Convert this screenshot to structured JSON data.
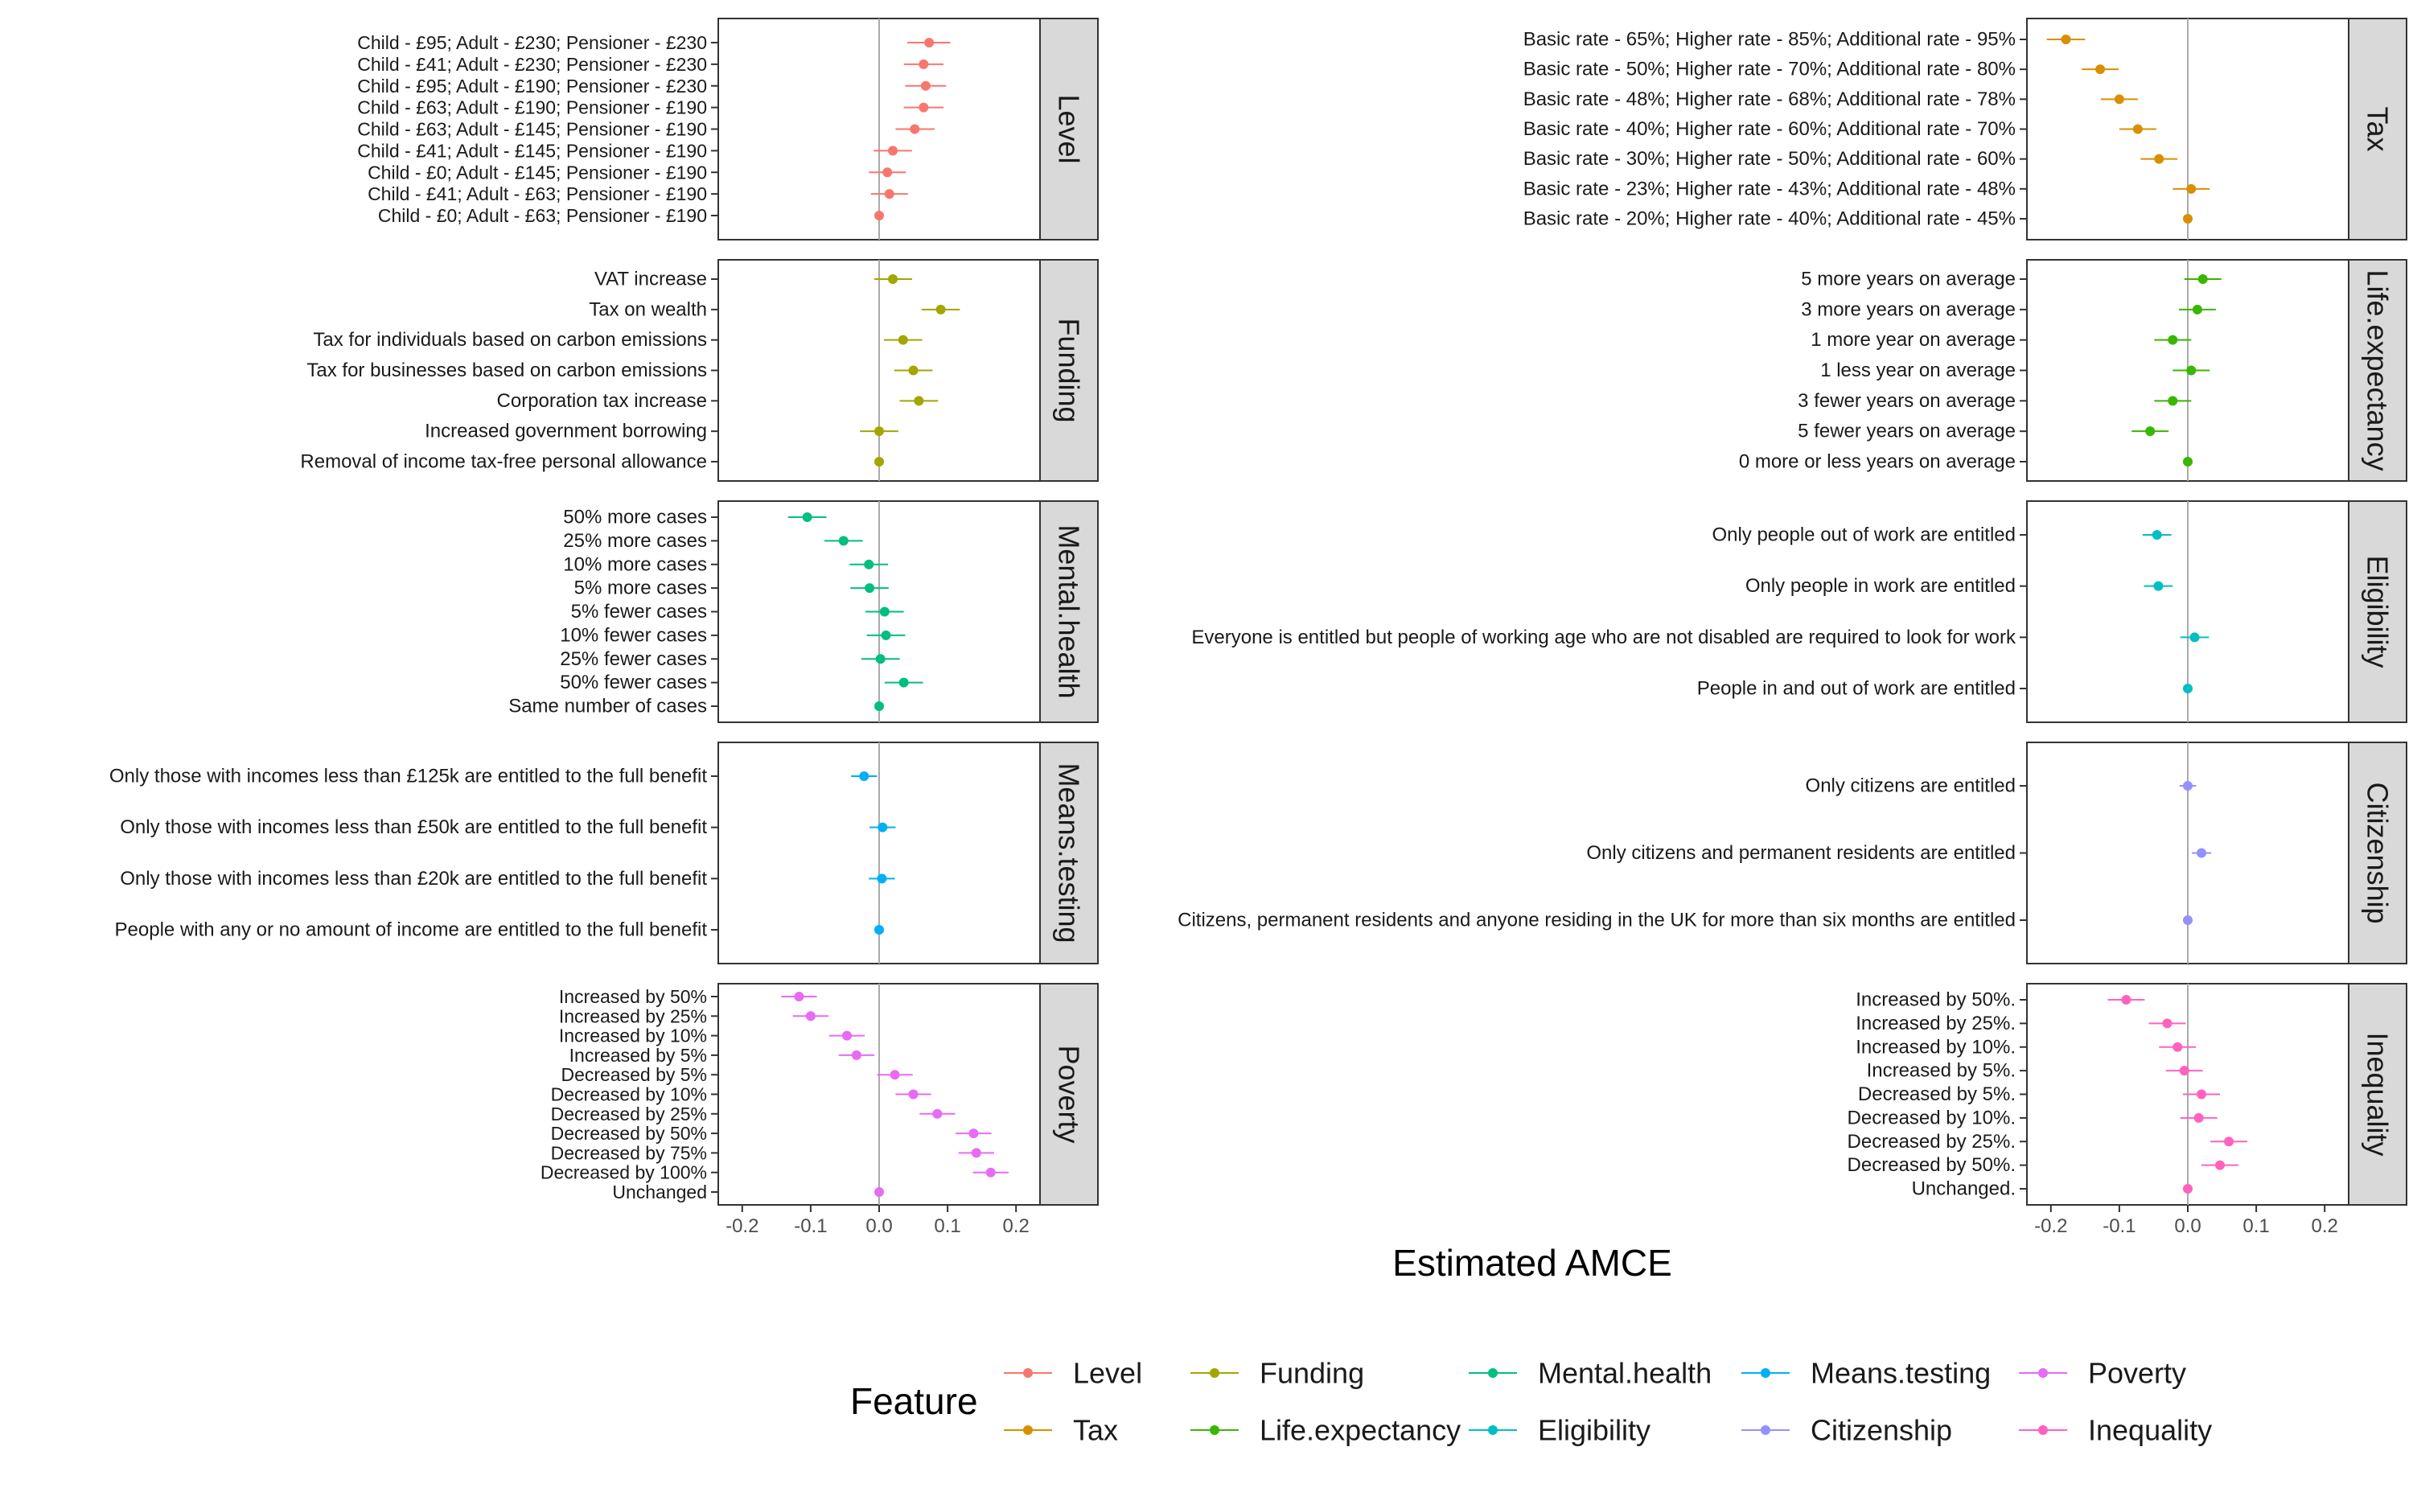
{
  "chart_data": {
    "type": "scatter",
    "xlabel": "Estimated AMCE",
    "xlim": [
      -0.235,
      0.235
    ],
    "xticks": [
      -0.2,
      -0.1,
      0.0,
      0.1,
      0.2
    ],
    "xtick_labels": [
      "-0.2",
      "-0.1",
      "0.0",
      "0.1",
      "0.2"
    ],
    "reference_line": 0,
    "legend": {
      "title": "Feature",
      "placement": "bottom"
    },
    "series": [
      {
        "name": "Level",
        "color": "#F8766D",
        "points": [
          {
            "label": "Child - £95; Adult - £230; Pensioner - £230",
            "estimate": 0.073,
            "lower": 0.041,
            "upper": 0.104
          },
          {
            "label": "Child - £41; Adult - £230; Pensioner - £230",
            "estimate": 0.065,
            "lower": 0.036,
            "upper": 0.094
          },
          {
            "label": "Child - £95; Adult - £190; Pensioner - £230",
            "estimate": 0.068,
            "lower": 0.038,
            "upper": 0.098
          },
          {
            "label": "Child - £63; Adult - £190; Pensioner - £190",
            "estimate": 0.065,
            "lower": 0.036,
            "upper": 0.094
          },
          {
            "label": "Child - £63; Adult - £145; Pensioner - £190",
            "estimate": 0.052,
            "lower": 0.024,
            "upper": 0.081
          },
          {
            "label": "Child - £41; Adult - £145; Pensioner - £190",
            "estimate": 0.02,
            "lower": -0.008,
            "upper": 0.048
          },
          {
            "label": "Child - £0; Adult - £145; Pensioner - £190",
            "estimate": 0.012,
            "lower": -0.015,
            "upper": 0.039
          },
          {
            "label": "Child - £41; Adult - £63; Pensioner - £190",
            "estimate": 0.015,
            "lower": -0.012,
            "upper": 0.042
          },
          {
            "label": "Child - £0; Adult - £63; Pensioner - £190",
            "estimate": 0.0
          }
        ]
      },
      {
        "name": "Tax",
        "color": "#D89000",
        "points": [
          {
            "label": "Basic rate - 65%; Higher rate - 85%; Additional rate - 95%",
            "estimate": -0.178,
            "lower": -0.206,
            "upper": -0.15
          },
          {
            "label": "Basic rate - 50%; Higher rate - 70%; Additional rate - 80%",
            "estimate": -0.128,
            "lower": -0.155,
            "upper": -0.101
          },
          {
            "label": "Basic rate - 48%; Higher rate - 68%; Additional rate - 78%",
            "estimate": -0.1,
            "lower": -0.127,
            "upper": -0.073
          },
          {
            "label": "Basic rate - 40%; Higher rate - 60%; Additional rate - 70%",
            "estimate": -0.073,
            "lower": -0.1,
            "upper": -0.046
          },
          {
            "label": "Basic rate - 30%; Higher rate - 50%; Additional rate - 60%",
            "estimate": -0.042,
            "lower": -0.069,
            "upper": -0.015
          },
          {
            "label": "Basic rate - 23%; Higher rate - 43%; Additional rate - 48%",
            "estimate": 0.005,
            "lower": -0.022,
            "upper": 0.032
          },
          {
            "label": "Basic rate - 20%; Higher rate - 40%; Additional rate - 45%",
            "estimate": 0.0
          }
        ]
      },
      {
        "name": "Funding",
        "color": "#A3A500",
        "points": [
          {
            "label": "VAT increase",
            "estimate": 0.02,
            "lower": -0.007,
            "upper": 0.048
          },
          {
            "label": "Tax on wealth",
            "estimate": 0.09,
            "lower": 0.062,
            "upper": 0.118
          },
          {
            "label": "Tax for individuals based on carbon emissions",
            "estimate": 0.035,
            "lower": 0.007,
            "upper": 0.063
          },
          {
            "label": "Tax for businesses based on carbon emissions",
            "estimate": 0.05,
            "lower": 0.022,
            "upper": 0.078
          },
          {
            "label": "Corporation tax increase",
            "estimate": 0.058,
            "lower": 0.03,
            "upper": 0.086
          },
          {
            "label": "Increased government borrowing",
            "estimate": 0.0,
            "lower": -0.028,
            "upper": 0.028
          },
          {
            "label": "Removal of income tax-free personal allowance",
            "estimate": 0.0
          }
        ]
      },
      {
        "name": "Life.expectancy",
        "color": "#39B600",
        "points": [
          {
            "label": "5 more years on average",
            "estimate": 0.022,
            "lower": -0.005,
            "upper": 0.049
          },
          {
            "label": "3 more years on average",
            "estimate": 0.014,
            "lower": -0.013,
            "upper": 0.041
          },
          {
            "label": "1 more year on average",
            "estimate": -0.022,
            "lower": -0.049,
            "upper": 0.005
          },
          {
            "label": "1 less year on average",
            "estimate": 0.005,
            "lower": -0.022,
            "upper": 0.032
          },
          {
            "label": "3 fewer years on average",
            "estimate": -0.022,
            "lower": -0.049,
            "upper": 0.005
          },
          {
            "label": "5 fewer years on average",
            "estimate": -0.055,
            "lower": -0.082,
            "upper": -0.028
          },
          {
            "label": "0 more or less years on average",
            "estimate": 0.0
          }
        ]
      },
      {
        "name": "Mental.health",
        "color": "#00BF7D",
        "points": [
          {
            "label": "50% more cases",
            "estimate": -0.105,
            "lower": -0.133,
            "upper": -0.077
          },
          {
            "label": "25% more cases",
            "estimate": -0.052,
            "lower": -0.08,
            "upper": -0.024
          },
          {
            "label": "10% more cases",
            "estimate": -0.015,
            "lower": -0.043,
            "upper": 0.013
          },
          {
            "label": "5% more cases",
            "estimate": -0.014,
            "lower": -0.042,
            "upper": 0.014
          },
          {
            "label": "5% fewer cases",
            "estimate": 0.008,
            "lower": -0.02,
            "upper": 0.036
          },
          {
            "label": "10% fewer cases",
            "estimate": 0.01,
            "lower": -0.018,
            "upper": 0.038
          },
          {
            "label": "25% fewer cases",
            "estimate": 0.002,
            "lower": -0.026,
            "upper": 0.03
          },
          {
            "label": "50% fewer cases",
            "estimate": 0.036,
            "lower": 0.008,
            "upper": 0.064
          },
          {
            "label": "Same number of cases",
            "estimate": 0.0
          }
        ]
      },
      {
        "name": "Eligibility",
        "color": "#00BFC4",
        "points": [
          {
            "label": "Only people out of work are entitled",
            "estimate": -0.045,
            "lower": -0.066,
            "upper": -0.024
          },
          {
            "label": "Only people in work are entitled",
            "estimate": -0.043,
            "lower": -0.064,
            "upper": -0.022
          },
          {
            "label": "Everyone is entitled but people of working age who are not disabled are required to look for work",
            "estimate": 0.01,
            "lower": -0.011,
            "upper": 0.031
          },
          {
            "label": "People in and out of work are entitled",
            "estimate": 0.0
          }
        ]
      },
      {
        "name": "Means.testing",
        "color": "#00B0F6",
        "points": [
          {
            "label": "Only those with incomes less than £125k are entitled to the full benefit",
            "estimate": -0.022,
            "lower": -0.041,
            "upper": -0.003
          },
          {
            "label": "Only those with incomes less than £50k are entitled to the full benefit",
            "estimate": 0.005,
            "lower": -0.014,
            "upper": 0.024
          },
          {
            "label": "Only those with incomes less than £20k are entitled to the full benefit",
            "estimate": 0.004,
            "lower": -0.015,
            "upper": 0.023
          },
          {
            "label": "People with any or no amount of income are entitled to the full benefit",
            "estimate": 0.0
          }
        ]
      },
      {
        "name": "Citizenship",
        "color": "#9590FF",
        "points": [
          {
            "label": "Only citizens are entitled",
            "estimate": 0.0,
            "lower": -0.012,
            "upper": 0.012
          },
          {
            "label": "Only citizens and permanent residents are entitled",
            "estimate": 0.02,
            "lower": 0.006,
            "upper": 0.034
          },
          {
            "label": "Citizens, permanent residents and anyone residing in the UK for more than six months are entitled",
            "estimate": 0.0
          }
        ]
      },
      {
        "name": "Poverty",
        "color": "#E76BF3",
        "points": [
          {
            "label": "Increased by 50%",
            "estimate": -0.117,
            "lower": -0.143,
            "upper": -0.091
          },
          {
            "label": "Increased by 25%",
            "estimate": -0.1,
            "lower": -0.126,
            "upper": -0.074
          },
          {
            "label": "Increased by 10%",
            "estimate": -0.047,
            "lower": -0.073,
            "upper": -0.021
          },
          {
            "label": "Increased by 5%",
            "estimate": -0.033,
            "lower": -0.059,
            "upper": -0.007
          },
          {
            "label": "Decreased by 5%",
            "estimate": 0.023,
            "lower": -0.003,
            "upper": 0.049
          },
          {
            "label": "Decreased by 10%",
            "estimate": 0.05,
            "lower": 0.024,
            "upper": 0.076
          },
          {
            "label": "Decreased by 25%",
            "estimate": 0.085,
            "lower": 0.059,
            "upper": 0.111
          },
          {
            "label": "Decreased by 50%",
            "estimate": 0.138,
            "lower": 0.112,
            "upper": 0.164
          },
          {
            "label": "Decreased by 75%",
            "estimate": 0.142,
            "lower": 0.116,
            "upper": 0.168
          },
          {
            "label": "Decreased by 100%",
            "estimate": 0.163,
            "lower": 0.137,
            "upper": 0.189
          },
          {
            "label": "Unchanged",
            "estimate": 0.0
          }
        ]
      },
      {
        "name": "Inequality",
        "color": "#FF62BC",
        "points": [
          {
            "label": "Increased by 50%.",
            "estimate": -0.09,
            "lower": -0.117,
            "upper": -0.063
          },
          {
            "label": "Increased by 25%.",
            "estimate": -0.03,
            "lower": -0.057,
            "upper": -0.003
          },
          {
            "label": "Increased by 10%.",
            "estimate": -0.015,
            "lower": -0.042,
            "upper": 0.012
          },
          {
            "label": "Increased by 5%.",
            "estimate": -0.005,
            "lower": -0.032,
            "upper": 0.022
          },
          {
            "label": "Decreased by 5%.",
            "estimate": 0.02,
            "lower": -0.007,
            "upper": 0.047
          },
          {
            "label": "Decreased by 10%.",
            "estimate": 0.016,
            "lower": -0.011,
            "upper": 0.043
          },
          {
            "label": "Decreased by 25%.",
            "estimate": 0.06,
            "lower": 0.033,
            "upper": 0.087
          },
          {
            "label": "Decreased by 50%.",
            "estimate": 0.047,
            "lower": 0.02,
            "upper": 0.074
          },
          {
            "label": "Unchanged.",
            "estimate": 0.0
          }
        ]
      }
    ]
  }
}
